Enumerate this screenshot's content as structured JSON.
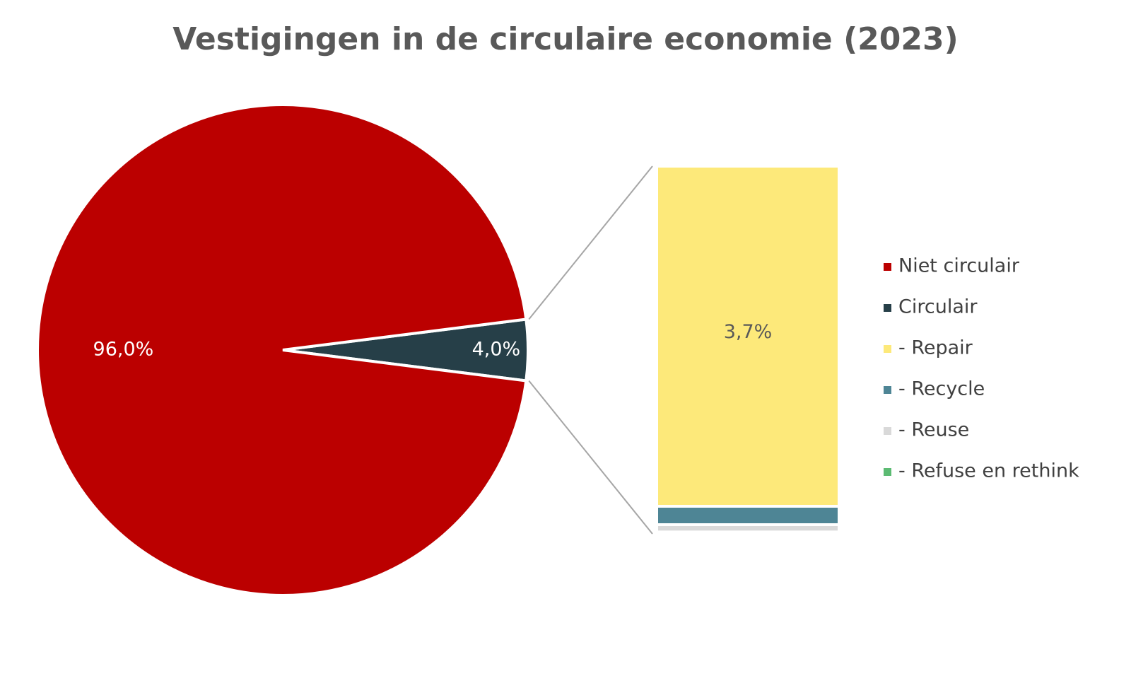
{
  "chart_data": {
    "type": "pie-of-bar",
    "title": "Vestigingen in de circulaire economie (2023)",
    "legend": "right",
    "pie": {
      "categories": [
        "Niet circulair",
        "Circulair"
      ],
      "values": [
        96.0,
        4.0
      ],
      "value_labels": [
        "96,0%",
        "4,0%"
      ],
      "colors": [
        "#bb0000",
        "#263f48"
      ]
    },
    "bar": {
      "categories": [
        "- Repair",
        "- Recycle",
        "- Reuse",
        "- Refuse en rethink"
      ],
      "values": [
        3.7,
        0.2,
        0.08,
        0.02
      ],
      "value_labels": [
        "3,7%",
        null,
        null,
        null
      ],
      "colors": [
        "#fde97a",
        "#4e8595",
        "#d9d9d9",
        "#5cbb73"
      ]
    }
  }
}
